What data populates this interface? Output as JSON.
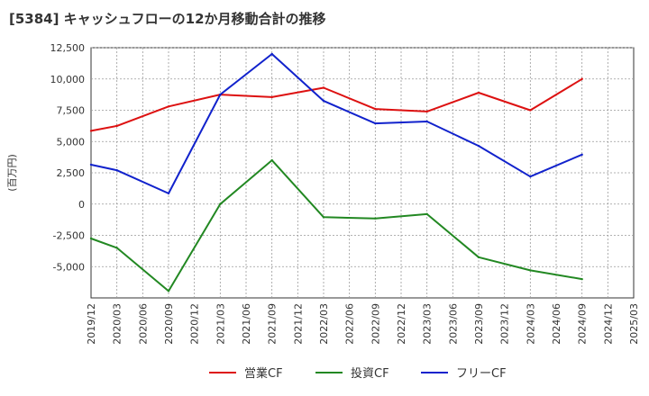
{
  "chart_data": {
    "type": "line",
    "title": "[5384]  キャッシュフローの12か月移動合計の推移",
    "ylabel": "(百万円)",
    "xlabel": "",
    "ylim": [
      -7500,
      12500
    ],
    "yticks": [
      12500,
      10000,
      7500,
      5000,
      2500,
      0,
      -2500,
      -5000
    ],
    "ytick_labels": [
      "12,500",
      "10,000",
      "7,500",
      "5,000",
      "2,500",
      "0",
      "-2,500",
      "-5,000"
    ],
    "categories": [
      "2019/12",
      "2020/03",
      "2020/06",
      "2020/09",
      "2020/12",
      "2021/03",
      "2021/06",
      "2021/09",
      "2021/12",
      "2022/03",
      "2022/06",
      "2022/09",
      "2022/12",
      "2023/03",
      "2023/06",
      "2023/09",
      "2023/12",
      "2024/03",
      "2024/06",
      "2024/09",
      "2024/12",
      "2025/03"
    ],
    "grid": true,
    "legend_position": "bottom",
    "series": [
      {
        "name": "営業CF",
        "color": "#dd1111",
        "x": [
          "2019/12",
          "2020/03",
          "2020/09",
          "2021/03",
          "2021/09",
          "2022/03",
          "2022/09",
          "2023/03",
          "2023/09",
          "2024/03",
          "2024/09"
        ],
        "values": [
          5850,
          6250,
          7800,
          8750,
          8550,
          9300,
          7600,
          7400,
          8900,
          7500,
          10000
        ]
      },
      {
        "name": "投資CF",
        "color": "#228822",
        "x": [
          "2019/12",
          "2020/03",
          "2020/09",
          "2021/03",
          "2021/09",
          "2022/03",
          "2022/09",
          "2023/03",
          "2023/09",
          "2024/03",
          "2024/09"
        ],
        "values": [
          -2750,
          -3500,
          -6950,
          0,
          3500,
          -1050,
          -1150,
          -800,
          -4250,
          -5300,
          -6000
        ]
      },
      {
        "name": "フリーCF",
        "color": "#1122cc",
        "x": [
          "2019/12",
          "2020/03",
          "2020/09",
          "2021/03",
          "2021/09",
          "2022/03",
          "2022/09",
          "2023/03",
          "2023/09",
          "2024/03",
          "2024/09"
        ],
        "values": [
          3150,
          2700,
          850,
          8750,
          12000,
          8250,
          6450,
          6600,
          4650,
          2200,
          3950
        ]
      }
    ]
  }
}
